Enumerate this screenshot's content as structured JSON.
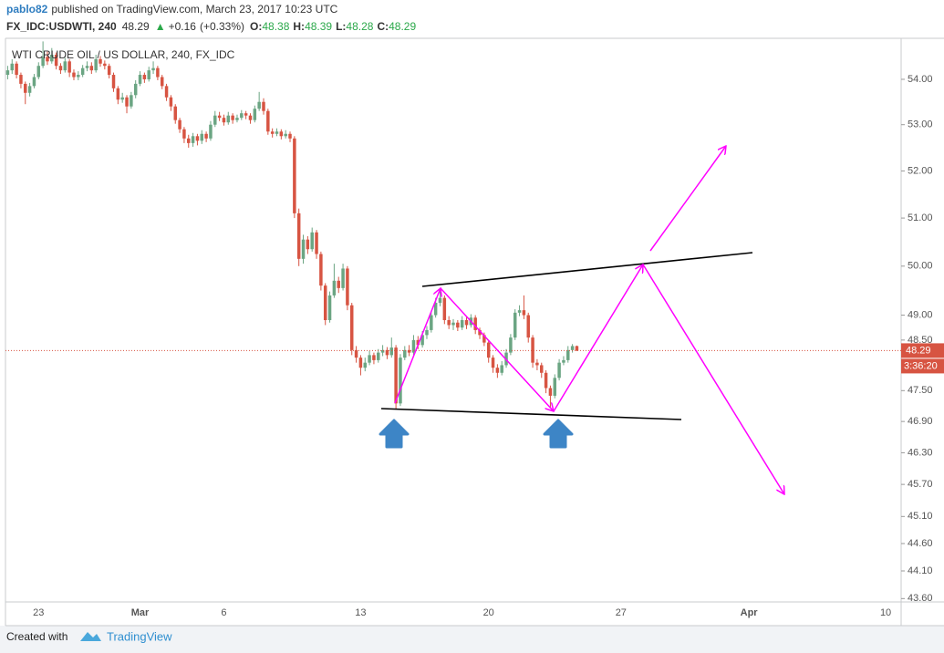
{
  "header": {
    "author": "pablo82",
    "published": "published on TradingView.com, March 23, 2017 10:23 UTC"
  },
  "chart_data": {
    "type": "candlestick",
    "title": "WTI CRUDE OIL / US DOLLAR, 240, FX_IDC",
    "symbol": "FX_IDC:USDWTI, 240",
    "change": "+0.16",
    "change_percent": "(+0.33%)",
    "ohlc_labels": [
      "O:",
      "H:",
      "L:",
      "C:"
    ],
    "countdown": "3:36:20",
    "up_color": "#6ba583",
    "down_color": "#d75442",
    "price_line_color": "#d75442",
    "log_scale": true,
    "grid": false,
    "ylim": [
      43.54,
      54.92
    ],
    "yticks": [
      {
        "value": 43.6,
        "label": "43.60"
      },
      {
        "value": 44.1,
        "label": "44.10"
      },
      {
        "value": 44.6,
        "label": "44.60"
      },
      {
        "value": 45.1,
        "label": "45.10"
      },
      {
        "value": 45.7,
        "label": "45.70"
      },
      {
        "value": 46.3,
        "label": "46.30"
      },
      {
        "value": 46.9,
        "label": "46.90"
      },
      {
        "value": 47.5,
        "label": "47.50"
      },
      {
        "value": 48.5,
        "label": "48.50"
      },
      {
        "value": 49,
        "label": "49.00"
      },
      {
        "value": 50,
        "label": "50.00"
      },
      {
        "value": 51,
        "label": "51.00"
      },
      {
        "value": 52,
        "label": "52.00"
      },
      {
        "value": 53,
        "label": "53.00"
      },
      {
        "value": 54,
        "label": "54.00"
      }
    ],
    "categories": [
      null,
      null,
      null,
      null,
      null,
      null,
      null,
      "23",
      null,
      null,
      null,
      null,
      null,
      null,
      null,
      null,
      null,
      null,
      null,
      null,
      null,
      null,
      null,
      null,
      null,
      null,
      null,
      null,
      null,
      null,
      "Mar",
      null,
      null,
      null,
      null,
      null,
      null,
      null,
      null,
      null,
      null,
      null,
      null,
      null,
      null,
      null,
      null,
      null,
      null,
      "6",
      null,
      null,
      null,
      null,
      null,
      null,
      null,
      null,
      null,
      null,
      null,
      null,
      null,
      null,
      null,
      null,
      null,
      null,
      null,
      null,
      null,
      null,
      null,
      null,
      null,
      null,
      null,
      null,
      null,
      null,
      "13",
      null,
      null,
      null,
      null,
      null,
      null,
      null,
      null,
      null,
      null,
      null,
      null,
      null,
      null,
      null,
      null,
      null,
      null,
      null,
      null,
      null,
      null,
      null,
      null,
      null,
      null,
      null,
      null,
      "20",
      null,
      null,
      null,
      null,
      null,
      null,
      null,
      null,
      null,
      null,
      null,
      null,
      null,
      null,
      null,
      null,
      null,
      null,
      null,
      null,
      null,
      null,
      null,
      null,
      null,
      null,
      null,
      null,
      null,
      "27",
      null,
      null,
      null,
      null,
      null,
      null,
      null,
      null,
      null,
      null,
      null,
      null,
      null,
      null,
      null,
      null,
      null,
      null,
      null,
      null,
      null,
      null,
      null,
      null,
      null,
      null,
      null,
      null,
      "Apr",
      null,
      null,
      null,
      null,
      null,
      null,
      null,
      null,
      null,
      null,
      null,
      null,
      null,
      null,
      null,
      null,
      null,
      null,
      null,
      null,
      null,
      null,
      null,
      null,
      null,
      null,
      null,
      null,
      null,
      null,
      "10",
      null,
      null,
      null
    ],
    "open": [
      54.1,
      54.2,
      54.35,
      54.1,
      53.9,
      53.7,
      53.85,
      54.05,
      54.3,
      54.5,
      54.4,
      54.55,
      54.3,
      54.2,
      54.4,
      54.15,
      54.05,
      54.1,
      54.25,
      54.3,
      54.2,
      54.45,
      54.35,
      54.3,
      54.1,
      53.8,
      53.55,
      53.6,
      53.4,
      53.65,
      53.9,
      54.1,
      54.0,
      54.2,
      54.25,
      54.05,
      53.85,
      53.6,
      53.4,
      53.1,
      52.9,
      52.7,
      52.6,
      52.75,
      52.65,
      52.8,
      52.7,
      53.0,
      53.2,
      53.15,
      53.05,
      53.2,
      53.1,
      53.15,
      53.25,
      53.2,
      53.1,
      53.35,
      53.5,
      53.3,
      52.85,
      52.8,
      52.85,
      52.75,
      52.8,
      52.7,
      51.1,
      50.15,
      50.55,
      50.35,
      50.7,
      50.25,
      49.6,
      48.9,
      49.4,
      49.7,
      49.55,
      49.95,
      49.2,
      48.3,
      48.15,
      47.95,
      48.05,
      48.2,
      48.1,
      48.25,
      48.3,
      48.2,
      48.35,
      47.25,
      48.15,
      48.3,
      48.25,
      48.5,
      48.4,
      48.6,
      48.7,
      49.0,
      49.25,
      49.35,
      48.9,
      48.8,
      48.85,
      48.75,
      48.9,
      48.8,
      48.95,
      48.7,
      48.6,
      48.45,
      48.15,
      47.95,
      47.85,
      48.0,
      48.25,
      48.55,
      49.05,
      49.1,
      49.0,
      48.55,
      48.05,
      48.0,
      47.85,
      47.55,
      47.4,
      47.75,
      48.05,
      48.1,
      48.3,
      48.38,
      null,
      null,
      null,
      null,
      null,
      null,
      null,
      null,
      null,
      null,
      null,
      null,
      null,
      null,
      null,
      null,
      null,
      null,
      null,
      null,
      null,
      null,
      null,
      null,
      null,
      null,
      null,
      null,
      null,
      null,
      null,
      null,
      null,
      null,
      null,
      null,
      null,
      null,
      null,
      null,
      null,
      null,
      null,
      null,
      null,
      null,
      null,
      null,
      null,
      null,
      null,
      null,
      null,
      null,
      null,
      null,
      null,
      null,
      null,
      null,
      null,
      null,
      null,
      null,
      null,
      null,
      null,
      null,
      null,
      null,
      null,
      null,
      null
    ],
    "high": [
      54.3,
      54.45,
      54.4,
      54.15,
      53.95,
      53.92,
      54.12,
      54.38,
      54.85,
      54.62,
      54.7,
      54.6,
      54.36,
      54.48,
      54.45,
      54.22,
      54.18,
      54.32,
      54.4,
      54.38,
      54.55,
      54.52,
      54.42,
      54.35,
      54.15,
      53.85,
      53.7,
      53.65,
      53.72,
      53.98,
      54.18,
      54.15,
      54.28,
      54.4,
      54.3,
      54.1,
      53.9,
      53.65,
      53.45,
      53.15,
      52.95,
      52.78,
      52.82,
      52.8,
      52.88,
      52.85,
      53.08,
      53.3,
      53.28,
      53.22,
      53.28,
      53.25,
      53.22,
      53.32,
      53.3,
      53.25,
      53.42,
      53.72,
      53.58,
      53.35,
      52.92,
      52.92,
      52.9,
      52.88,
      52.85,
      52.75,
      51.2,
      50.65,
      50.62,
      50.8,
      50.75,
      50.3,
      49.65,
      49.48,
      50.05,
      49.78,
      50.05,
      50.0,
      49.25,
      48.38,
      48.2,
      48.15,
      48.28,
      48.25,
      48.32,
      48.4,
      48.36,
      48.55,
      48.4,
      48.22,
      48.38,
      48.4,
      48.6,
      48.58,
      48.68,
      48.78,
      49.08,
      49.35,
      49.48,
      49.4,
      48.98,
      48.92,
      48.9,
      48.98,
      48.96,
      49.02,
      49.0,
      48.75,
      48.65,
      48.5,
      48.2,
      48.02,
      48.08,
      48.32,
      48.62,
      49.12,
      49.2,
      49.4,
      49.05,
      48.6,
      48.12,
      48.05,
      47.9,
      47.6,
      47.82,
      48.12,
      48.18,
      48.38,
      48.42,
      48.39,
      null,
      null,
      null,
      null,
      null,
      null,
      null,
      null,
      null,
      null,
      null,
      null,
      null,
      null,
      null,
      null,
      null,
      null,
      null,
      null,
      null,
      null,
      null,
      null,
      null,
      null,
      null,
      null,
      null,
      null,
      null,
      null,
      null,
      null,
      null,
      null,
      null,
      null,
      null,
      null,
      null,
      null,
      null,
      null,
      null,
      null,
      null,
      null,
      null,
      null,
      null,
      null,
      null,
      null,
      null,
      null,
      null,
      null,
      null,
      null,
      null,
      null,
      null,
      null,
      null,
      null,
      null,
      null,
      null,
      null,
      null,
      null,
      null
    ],
    "low": [
      54.0,
      54.12,
      54.02,
      53.8,
      53.45,
      53.62,
      53.8,
      54.0,
      54.25,
      54.32,
      54.35,
      54.22,
      54.12,
      54.15,
      54.05,
      53.98,
      53.98,
      54.05,
      54.18,
      54.12,
      54.15,
      54.28,
      54.22,
      54.02,
      53.72,
      53.45,
      53.48,
      53.25,
      53.35,
      53.58,
      53.85,
      53.92,
      53.95,
      54.12,
      53.98,
      53.78,
      53.52,
      53.3,
      53.02,
      52.82,
      52.6,
      52.5,
      52.52,
      52.55,
      52.58,
      52.62,
      52.65,
      52.95,
      53.08,
      52.98,
      53.0,
      53.02,
      53.05,
      53.1,
      53.12,
      53.02,
      53.05,
      53.3,
      53.22,
      52.78,
      52.72,
      52.75,
      52.68,
      52.7,
      52.62,
      51.0,
      50.0,
      50.05,
      50.25,
      50.3,
      50.15,
      49.5,
      48.8,
      48.85,
      49.35,
      49.45,
      49.5,
      49.1,
      48.2,
      48.05,
      47.8,
      47.88,
      48.0,
      48.02,
      48.05,
      48.18,
      48.12,
      48.15,
      47.15,
      47.2,
      48.1,
      48.18,
      48.2,
      48.32,
      48.35,
      48.52,
      48.65,
      48.95,
      49.18,
      48.82,
      48.72,
      48.7,
      48.68,
      48.7,
      48.72,
      48.75,
      48.62,
      48.52,
      48.38,
      48.05,
      47.85,
      47.75,
      47.8,
      47.95,
      48.2,
      48.5,
      48.98,
      48.92,
      48.45,
      47.95,
      47.9,
      47.75,
      47.45,
      47.15,
      47.35,
      47.7,
      48.0,
      48.05,
      48.25,
      48.28,
      null,
      null,
      null,
      null,
      null,
      null,
      null,
      null,
      null,
      null,
      null,
      null,
      null,
      null,
      null,
      null,
      null,
      null,
      null,
      null,
      null,
      null,
      null,
      null,
      null,
      null,
      null,
      null,
      null,
      null,
      null,
      null,
      null,
      null,
      null,
      null,
      null,
      null,
      null,
      null,
      null,
      null,
      null,
      null,
      null,
      null,
      null,
      null,
      null,
      null,
      null,
      null,
      null,
      null,
      null,
      null,
      null,
      null,
      null,
      null,
      null,
      null,
      null,
      null,
      null,
      null,
      null,
      null,
      null,
      null,
      null,
      null,
      null
    ],
    "close": [
      54.2,
      54.35,
      54.1,
      53.9,
      53.7,
      53.85,
      54.05,
      54.3,
      54.5,
      54.4,
      54.55,
      54.3,
      54.2,
      54.4,
      54.15,
      54.05,
      54.1,
      54.25,
      54.3,
      54.2,
      54.45,
      54.35,
      54.3,
      54.1,
      53.8,
      53.55,
      53.6,
      53.4,
      53.65,
      53.9,
      54.1,
      54.0,
      54.2,
      54.25,
      54.05,
      53.85,
      53.6,
      53.4,
      53.1,
      52.9,
      52.7,
      52.6,
      52.75,
      52.65,
      52.8,
      52.7,
      53.0,
      53.2,
      53.15,
      53.05,
      53.2,
      53.1,
      53.15,
      53.25,
      53.2,
      53.1,
      53.35,
      53.5,
      53.3,
      52.85,
      52.8,
      52.85,
      52.75,
      52.8,
      52.7,
      51.1,
      50.15,
      50.55,
      50.35,
      50.7,
      50.25,
      49.6,
      48.9,
      49.4,
      49.7,
      49.55,
      49.95,
      49.2,
      48.3,
      48.15,
      47.95,
      48.05,
      48.2,
      48.1,
      48.25,
      48.3,
      48.2,
      48.35,
      47.25,
      48.15,
      48.3,
      48.25,
      48.5,
      48.4,
      48.6,
      48.7,
      49.0,
      49.25,
      49.35,
      48.9,
      48.8,
      48.85,
      48.75,
      48.9,
      48.8,
      48.95,
      48.7,
      48.6,
      48.45,
      48.15,
      47.95,
      47.85,
      48.0,
      48.25,
      48.55,
      49.05,
      49.1,
      49.0,
      48.55,
      48.05,
      48.0,
      47.85,
      47.55,
      47.4,
      47.75,
      48.05,
      48.1,
      48.3,
      48.38,
      48.29,
      null,
      null,
      null,
      null,
      null,
      null,
      null,
      null,
      null,
      null,
      null,
      null,
      null,
      null,
      null,
      null,
      null,
      null,
      null,
      null,
      null,
      null,
      null,
      null,
      null,
      null,
      null,
      null,
      null,
      null,
      null,
      null,
      null,
      null,
      null,
      null,
      null,
      null,
      null,
      null,
      null,
      null,
      null,
      null,
      null,
      null,
      null,
      null,
      null,
      null,
      null,
      null,
      null,
      null,
      null,
      null,
      null,
      null,
      null,
      null,
      null,
      null,
      null,
      null,
      null,
      null,
      null,
      null,
      null,
      null,
      null,
      null,
      null
    ]
  },
  "footer": {
    "created_with": "Created with",
    "brand": "TradingView"
  }
}
